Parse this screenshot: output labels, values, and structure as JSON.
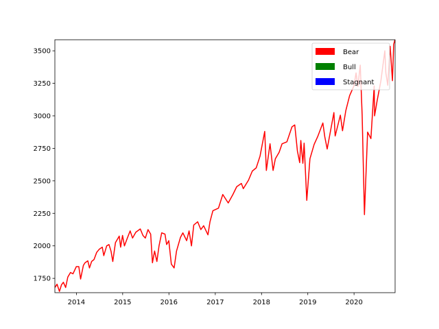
{
  "chart_data": {
    "type": "line",
    "title": "",
    "xlabel": "",
    "ylabel": "",
    "xlim": [
      "2013-07-15",
      "2020-11-20"
    ],
    "ylim": [
      1640,
      3585
    ],
    "grid": false,
    "legend_position": "top-right",
    "x_ticks": [
      {
        "label": "2014",
        "date": "2014-01-01"
      },
      {
        "label": "2015",
        "date": "2015-01-01"
      },
      {
        "label": "2016",
        "date": "2016-01-01"
      },
      {
        "label": "2017",
        "date": "2017-01-01"
      },
      {
        "label": "2018",
        "date": "2018-01-01"
      },
      {
        "label": "2019",
        "date": "2019-01-01"
      },
      {
        "label": "2020",
        "date": "2020-01-01"
      }
    ],
    "y_ticks": [
      1750,
      2000,
      2250,
      2500,
      2750,
      3000,
      3250,
      3500
    ],
    "legend": [
      {
        "label": "Bear",
        "color": "#ff0000"
      },
      {
        "label": "Bull",
        "color": "#008000"
      },
      {
        "label": "Stagnant",
        "color": "#0000ff"
      }
    ],
    "series": [
      {
        "color": "#ff0000",
        "points": [
          [
            "2013-07-15",
            1680
          ],
          [
            "2013-08-01",
            1705
          ],
          [
            "2013-08-20",
            1650
          ],
          [
            "2013-09-05",
            1700
          ],
          [
            "2013-09-20",
            1720
          ],
          [
            "2013-10-08",
            1680
          ],
          [
            "2013-10-25",
            1760
          ],
          [
            "2013-11-15",
            1795
          ],
          [
            "2013-12-05",
            1785
          ],
          [
            "2013-12-31",
            1840
          ],
          [
            "2014-01-20",
            1840
          ],
          [
            "2014-02-03",
            1745
          ],
          [
            "2014-02-25",
            1850
          ],
          [
            "2014-03-10",
            1870
          ],
          [
            "2014-04-01",
            1885
          ],
          [
            "2014-04-14",
            1830
          ],
          [
            "2014-05-01",
            1880
          ],
          [
            "2014-05-20",
            1895
          ],
          [
            "2014-06-10",
            1950
          ],
          [
            "2014-07-01",
            1975
          ],
          [
            "2014-07-24",
            1990
          ],
          [
            "2014-08-05",
            1925
          ],
          [
            "2014-08-28",
            2000
          ],
          [
            "2014-09-15",
            2010
          ],
          [
            "2014-10-01",
            1960
          ],
          [
            "2014-10-15",
            1880
          ],
          [
            "2014-11-05",
            2025
          ],
          [
            "2014-12-05",
            2075
          ],
          [
            "2014-12-16",
            1990
          ],
          [
            "2014-12-31",
            2080
          ],
          [
            "2015-01-15",
            2000
          ],
          [
            "2015-02-05",
            2055
          ],
          [
            "2015-03-01",
            2115
          ],
          [
            "2015-03-20",
            2060
          ],
          [
            "2015-04-15",
            2105
          ],
          [
            "2015-05-20",
            2130
          ],
          [
            "2015-06-10",
            2080
          ],
          [
            "2015-06-29",
            2060
          ],
          [
            "2015-07-20",
            2125
          ],
          [
            "2015-08-10",
            2090
          ],
          [
            "2015-08-24",
            1870
          ],
          [
            "2015-09-10",
            1960
          ],
          [
            "2015-09-28",
            1880
          ],
          [
            "2015-10-15",
            2000
          ],
          [
            "2015-11-05",
            2100
          ],
          [
            "2015-12-01",
            2090
          ],
          [
            "2015-12-14",
            2010
          ],
          [
            "2015-12-31",
            2040
          ],
          [
            "2016-01-20",
            1860
          ],
          [
            "2016-02-11",
            1830
          ],
          [
            "2016-03-01",
            1960
          ],
          [
            "2016-04-01",
            2065
          ],
          [
            "2016-04-20",
            2100
          ],
          [
            "2016-05-20",
            2040
          ],
          [
            "2016-06-08",
            2115
          ],
          [
            "2016-06-27",
            2000
          ],
          [
            "2016-07-15",
            2160
          ],
          [
            "2016-08-15",
            2185
          ],
          [
            "2016-09-09",
            2125
          ],
          [
            "2016-10-01",
            2155
          ],
          [
            "2016-11-04",
            2085
          ],
          [
            "2016-11-20",
            2185
          ],
          [
            "2016-12-13",
            2270
          ],
          [
            "2017-01-26",
            2290
          ],
          [
            "2017-03-01",
            2395
          ],
          [
            "2017-04-13",
            2330
          ],
          [
            "2017-05-20",
            2395
          ],
          [
            "2017-06-19",
            2455
          ],
          [
            "2017-07-26",
            2480
          ],
          [
            "2017-08-10",
            2440
          ],
          [
            "2017-09-20",
            2505
          ],
          [
            "2017-10-20",
            2575
          ],
          [
            "2017-11-20",
            2600
          ],
          [
            "2017-12-20",
            2690
          ],
          [
            "2018-01-26",
            2880
          ],
          [
            "2018-02-08",
            2580
          ],
          [
            "2018-03-09",
            2785
          ],
          [
            "2018-04-02",
            2580
          ],
          [
            "2018-04-20",
            2670
          ],
          [
            "2018-05-20",
            2720
          ],
          [
            "2018-06-12",
            2785
          ],
          [
            "2018-07-20",
            2800
          ],
          [
            "2018-08-29",
            2915
          ],
          [
            "2018-09-20",
            2930
          ],
          [
            "2018-10-11",
            2730
          ],
          [
            "2018-10-29",
            2640
          ],
          [
            "2018-11-07",
            2810
          ],
          [
            "2018-11-23",
            2635
          ],
          [
            "2018-12-03",
            2790
          ],
          [
            "2018-12-24",
            2350
          ],
          [
            "2019-01-18",
            2670
          ],
          [
            "2019-02-20",
            2780
          ],
          [
            "2019-03-20",
            2840
          ],
          [
            "2019-04-30",
            2945
          ],
          [
            "2019-05-15",
            2840
          ],
          [
            "2019-06-03",
            2745
          ],
          [
            "2019-07-26",
            3025
          ],
          [
            "2019-08-05",
            2845
          ],
          [
            "2019-09-15",
            3005
          ],
          [
            "2019-10-02",
            2885
          ],
          [
            "2019-10-28",
            3040
          ],
          [
            "2019-11-27",
            3155
          ],
          [
            "2019-12-31",
            3230
          ],
          [
            "2020-01-17",
            3330
          ],
          [
            "2020-01-31",
            3225
          ],
          [
            "2020-02-19",
            3390
          ],
          [
            "2020-03-05",
            3005
          ],
          [
            "2020-03-23",
            2240
          ],
          [
            "2020-04-01",
            2470
          ],
          [
            "2020-04-17",
            2875
          ],
          [
            "2020-05-13",
            2825
          ],
          [
            "2020-06-08",
            3230
          ],
          [
            "2020-06-11",
            3000
          ],
          [
            "2020-07-01",
            3115
          ],
          [
            "2020-07-31",
            3270
          ],
          [
            "2020-08-31",
            3500
          ],
          [
            "2020-09-08",
            3330
          ],
          [
            "2020-09-23",
            3235
          ],
          [
            "2020-10-12",
            3535
          ],
          [
            "2020-10-30",
            3270
          ],
          [
            "2020-11-09",
            3550
          ],
          [
            "2020-11-20",
            3590
          ]
        ]
      }
    ]
  }
}
